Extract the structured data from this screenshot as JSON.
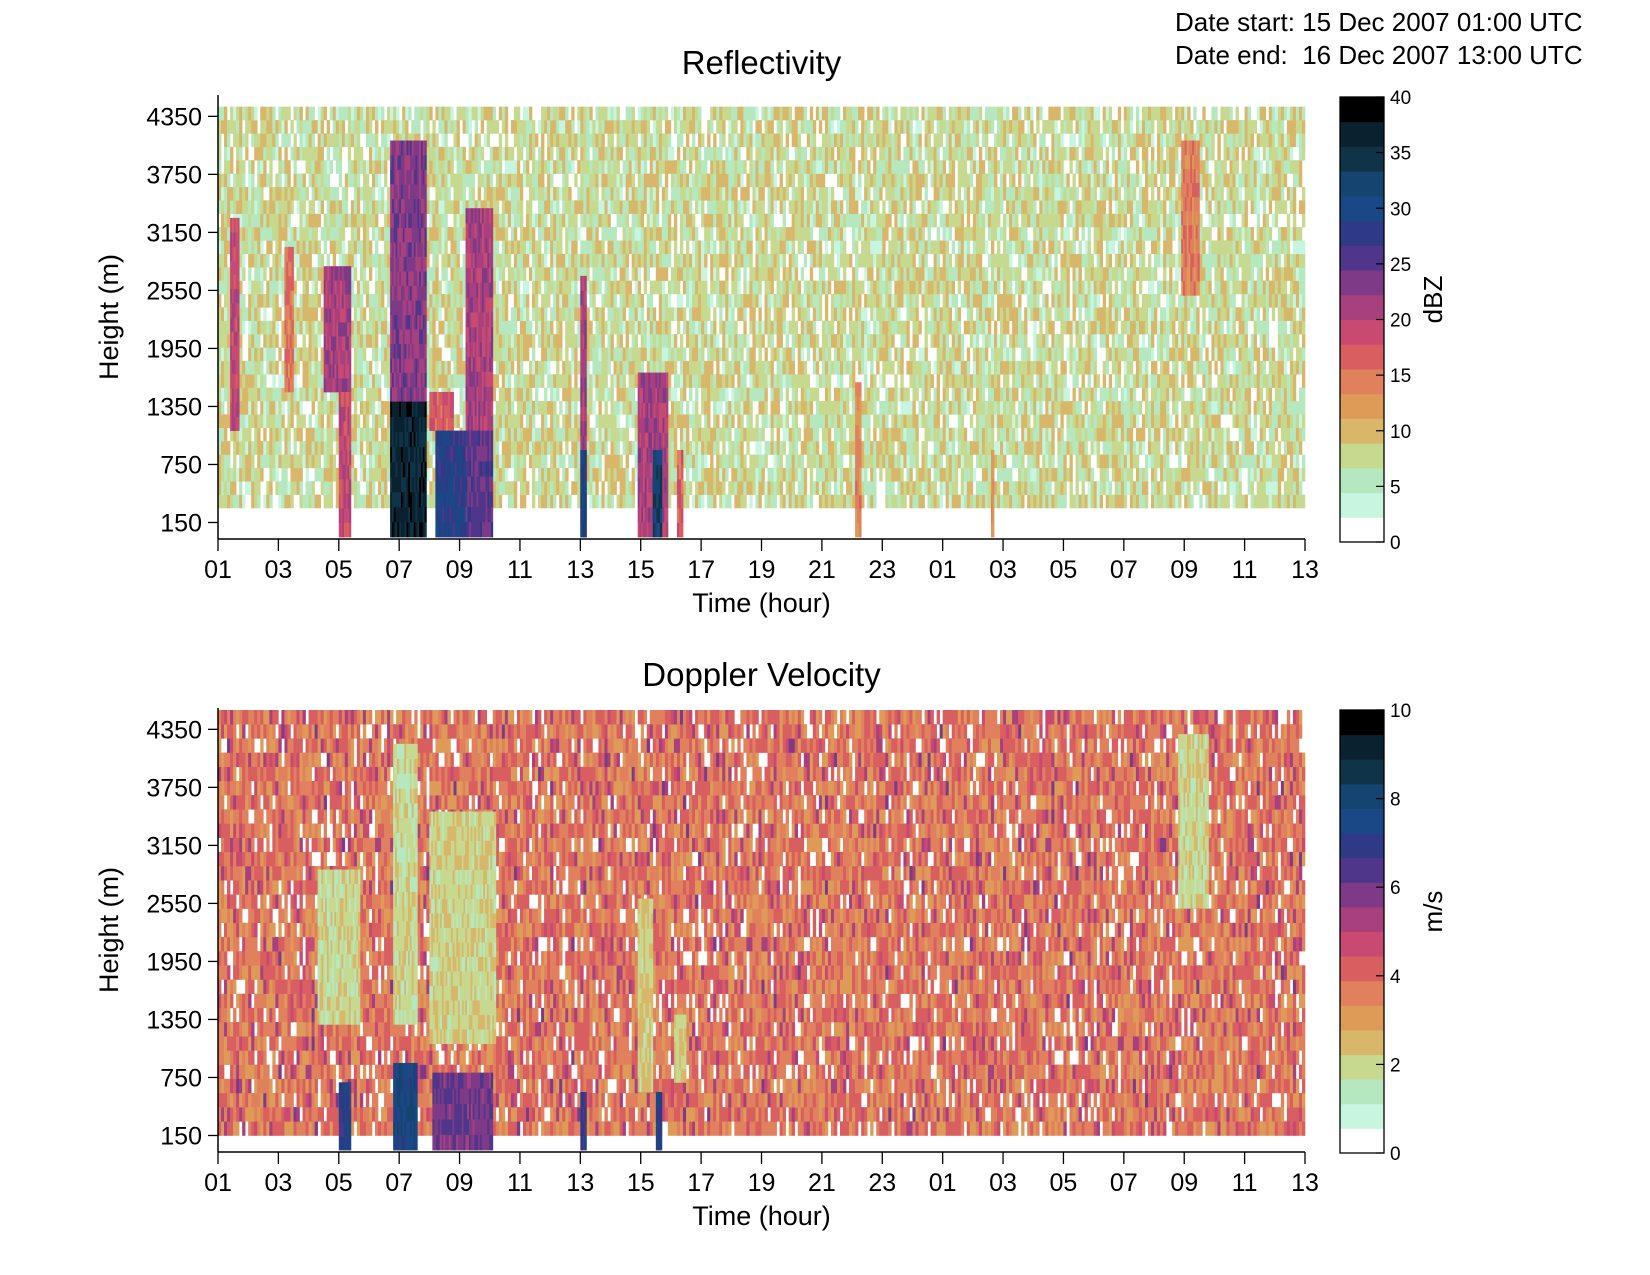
{
  "header": {
    "start_label": "Date start:",
    "start_value": "15 Dec 2007 01:00 UTC",
    "end_label": "Date end:",
    "end_value": "16 Dec 2007 13:00 UTC"
  },
  "chart_data": [
    {
      "type": "heatmap",
      "title": "Reflectivity",
      "xlabel": "Time (hour)",
      "ylabel": "Height (m)",
      "x_ticks": [
        "01",
        "03",
        "05",
        "07",
        "09",
        "11",
        "13",
        "15",
        "17",
        "19",
        "21",
        "23",
        "01",
        "03",
        "05",
        "07",
        "09",
        "11",
        "13"
      ],
      "y_ticks": [
        "150",
        "750",
        "1350",
        "1950",
        "2550",
        "3150",
        "3750",
        "4350"
      ],
      "xlim_hours": [
        0,
        36
      ],
      "ylim": [
        0,
        4550
      ],
      "colorbar": {
        "label": "dBZ",
        "range": [
          0,
          40
        ],
        "ticks": [
          "0",
          "5",
          "10",
          "15",
          "20",
          "25",
          "30",
          "35",
          "40"
        ]
      },
      "background_level": [
        3,
        9
      ],
      "features": [
        {
          "t_start": 0.4,
          "t_end": 0.7,
          "z_bottom": 1100,
          "z_top": 3300,
          "value": 18
        },
        {
          "t_start": 2.2,
          "t_end": 2.5,
          "z_bottom": 1500,
          "z_top": 3000,
          "value": 14
        },
        {
          "t_start": 3.5,
          "t_end": 4.4,
          "z_bottom": 1500,
          "z_top": 2800,
          "value": 20
        },
        {
          "t_start": 4.0,
          "t_end": 4.4,
          "z_bottom": 0,
          "z_top": 1500,
          "value": 18
        },
        {
          "t_start": 5.7,
          "t_end": 6.9,
          "z_bottom": 1400,
          "z_top": 4100,
          "value": 22
        },
        {
          "t_start": 5.7,
          "t_end": 6.9,
          "z_bottom": 0,
          "z_top": 1400,
          "value": 36
        },
        {
          "t_start": 7.0,
          "t_end": 7.8,
          "z_bottom": 1100,
          "z_top": 1500,
          "value": 16
        },
        {
          "t_start": 7.2,
          "t_end": 8.2,
          "z_bottom": 0,
          "z_top": 1100,
          "value": 28
        },
        {
          "t_start": 8.2,
          "t_end": 9.1,
          "z_bottom": 1100,
          "z_top": 3400,
          "value": 20
        },
        {
          "t_start": 8.2,
          "t_end": 9.1,
          "z_bottom": 0,
          "z_top": 1100,
          "value": 24
        },
        {
          "t_start": 12.0,
          "t_end": 12.2,
          "z_bottom": 0,
          "z_top": 2700,
          "value": 20
        },
        {
          "t_start": 12.0,
          "t_end": 12.2,
          "z_bottom": 0,
          "z_top": 900,
          "value": 30
        },
        {
          "t_start": 13.9,
          "t_end": 14.9,
          "z_bottom": 0,
          "z_top": 1700,
          "value": 20
        },
        {
          "t_start": 14.4,
          "t_end": 14.7,
          "z_bottom": 0,
          "z_top": 900,
          "value": 32
        },
        {
          "t_start": 15.2,
          "t_end": 15.4,
          "z_bottom": 0,
          "z_top": 900,
          "value": 16
        },
        {
          "t_start": 21.1,
          "t_end": 21.3,
          "z_bottom": 0,
          "z_top": 1600,
          "value": 12
        },
        {
          "t_start": 25.6,
          "t_end": 25.7,
          "z_bottom": 0,
          "z_top": 900,
          "value": 11
        },
        {
          "t_start": 31.9,
          "t_end": 32.5,
          "z_bottom": 2500,
          "z_top": 4100,
          "value": 13
        }
      ]
    },
    {
      "type": "heatmap",
      "title": "Doppler Velocity",
      "xlabel": "Time (hour)",
      "ylabel": "Height (m)",
      "x_ticks": [
        "01",
        "03",
        "05",
        "07",
        "09",
        "11",
        "13",
        "15",
        "17",
        "19",
        "21",
        "23",
        "01",
        "03",
        "05",
        "07",
        "09",
        "11",
        "13"
      ],
      "y_ticks": [
        "150",
        "750",
        "1350",
        "1950",
        "2550",
        "3150",
        "3750",
        "4350"
      ],
      "xlim_hours": [
        0,
        36
      ],
      "ylim": [
        0,
        4550
      ],
      "colorbar": {
        "label": "m/s",
        "range": [
          0,
          10
        ],
        "ticks": [
          "0",
          "2",
          "4",
          "6",
          "8",
          "10"
        ]
      },
      "background_level": [
        2.6,
        4.2
      ],
      "features": [
        {
          "t_start": 3.3,
          "t_end": 4.7,
          "z_bottom": 1300,
          "z_top": 2900,
          "value": 1.5
        },
        {
          "t_start": 5.8,
          "t_end": 6.6,
          "z_bottom": 1300,
          "z_top": 4200,
          "value": 1.4
        },
        {
          "t_start": 7.0,
          "t_end": 9.2,
          "z_bottom": 1100,
          "z_top": 3500,
          "value": 1.6
        },
        {
          "t_start": 4.0,
          "t_end": 4.4,
          "z_bottom": 0,
          "z_top": 700,
          "value": 7.0
        },
        {
          "t_start": 5.8,
          "t_end": 6.6,
          "z_bottom": 0,
          "z_top": 900,
          "value": 7.5
        },
        {
          "t_start": 7.1,
          "t_end": 9.1,
          "z_bottom": 0,
          "z_top": 800,
          "value": 5.8
        },
        {
          "t_start": 12.0,
          "t_end": 12.2,
          "z_bottom": 0,
          "z_top": 600,
          "value": 6.5
        },
        {
          "t_start": 13.9,
          "t_end": 14.4,
          "z_bottom": 600,
          "z_top": 2600,
          "value": 1.7
        },
        {
          "t_start": 14.5,
          "t_end": 14.7,
          "z_bottom": 0,
          "z_top": 600,
          "value": 7.0
        },
        {
          "t_start": 15.1,
          "t_end": 15.5,
          "z_bottom": 700,
          "z_top": 1400,
          "value": 1.8
        },
        {
          "t_start": 31.8,
          "t_end": 32.8,
          "z_bottom": 2500,
          "z_top": 4300,
          "value": 1.5
        }
      ]
    }
  ]
}
